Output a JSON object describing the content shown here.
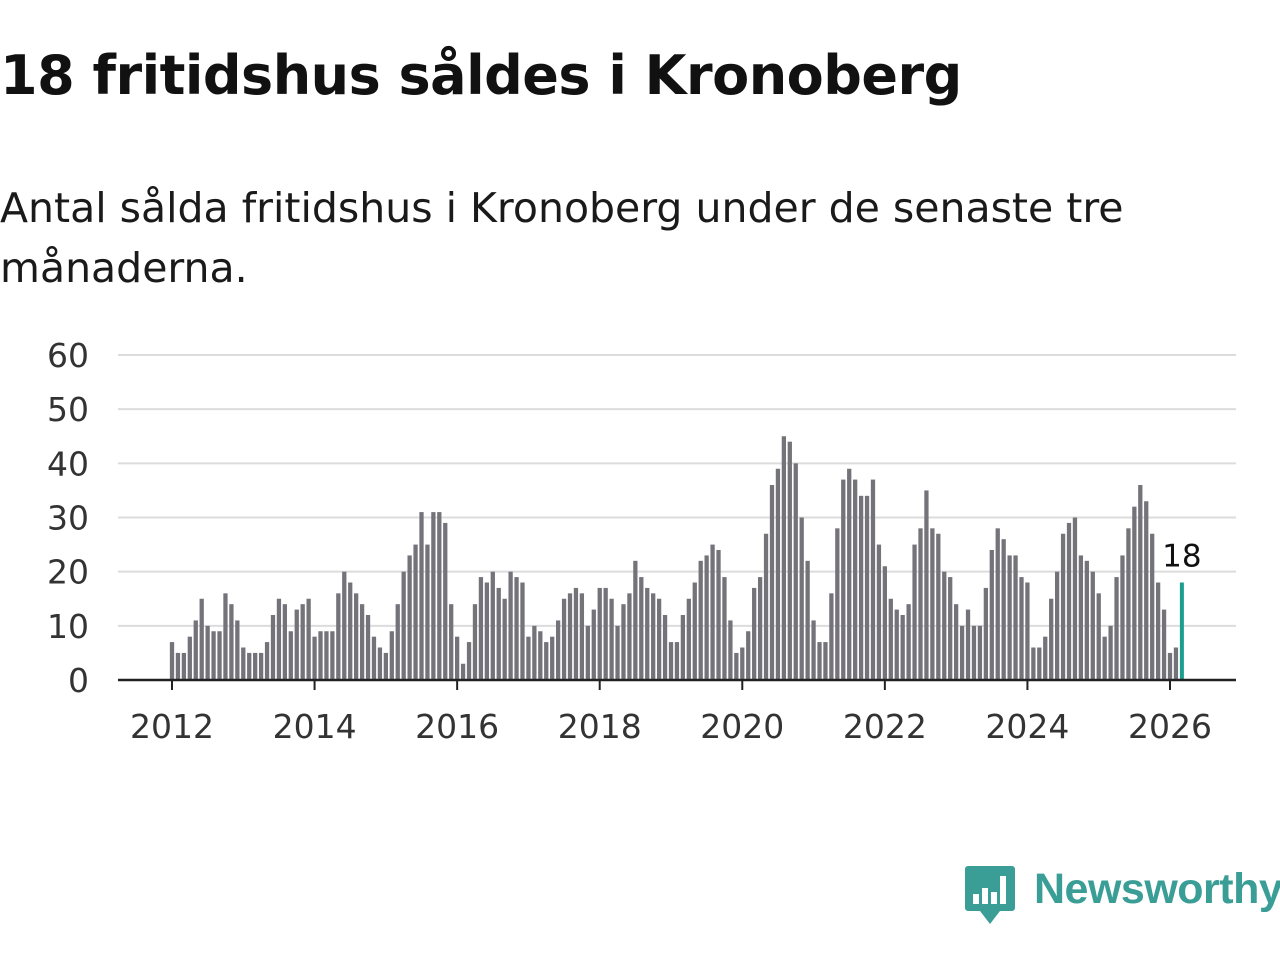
{
  "title": "18 fritidshus såldes i Kronoberg",
  "subtitle": "Antal sålda fritidshus i Kronoberg under de senaste tre månaderna.",
  "brand": {
    "name": "Newsworthy",
    "color": "#3a9e96",
    "icon": "newsworthy-logo-icon"
  },
  "chart_data": {
    "type": "bar",
    "title": "18 fritidshus såldes i Kronoberg",
    "xlabel": "",
    "ylabel": "",
    "ylim": [
      0,
      60
    ],
    "yticks": [
      0,
      10,
      20,
      30,
      40,
      50,
      60
    ],
    "ytick_labels": [
      "0",
      "10",
      "20",
      "30",
      "40",
      "50",
      "60"
    ],
    "xticks": [
      2012,
      2014,
      2016,
      2018,
      2020,
      2022,
      2024,
      2026
    ],
    "xtick_labels": [
      "2012",
      "2014",
      "2016",
      "2018",
      "2020",
      "2022",
      "2024",
      "2026"
    ],
    "grid": true,
    "start": "2012-01",
    "frequency": "monthly",
    "bar_color": "#75737a",
    "highlight_color": "#1a9e8f",
    "highlight_index": 170,
    "annotation": {
      "index": 170,
      "text": "18"
    },
    "values": [
      7,
      5,
      5,
      8,
      11,
      15,
      10,
      9,
      9,
      16,
      14,
      11,
      6,
      5,
      5,
      5,
      7,
      12,
      15,
      14,
      9,
      13,
      14,
      15,
      8,
      9,
      9,
      9,
      16,
      20,
      18,
      16,
      14,
      12,
      8,
      6,
      5,
      9,
      14,
      20,
      23,
      25,
      31,
      25,
      31,
      31,
      29,
      14,
      8,
      3,
      7,
      14,
      19,
      18,
      20,
      17,
      15,
      20,
      19,
      18,
      8,
      10,
      9,
      7,
      8,
      11,
      15,
      16,
      17,
      16,
      10,
      13,
      17,
      17,
      15,
      10,
      14,
      16,
      22,
      19,
      17,
      16,
      15,
      12,
      7,
      7,
      12,
      15,
      18,
      22,
      23,
      25,
      24,
      19,
      11,
      5,
      6,
      9,
      17,
      19,
      27,
      36,
      39,
      45,
      44,
      40,
      30,
      22,
      11,
      7,
      7,
      16,
      28,
      37,
      39,
      37,
      34,
      34,
      37,
      25,
      21,
      15,
      13,
      12,
      14,
      25,
      28,
      35,
      28,
      27,
      20,
      19,
      14,
      10,
      13,
      10,
      10,
      17,
      24,
      28,
      26,
      23,
      23,
      19,
      18,
      6,
      6,
      8,
      15,
      20,
      27,
      29,
      30,
      23,
      22,
      20,
      16,
      8,
      10,
      19,
      23,
      28,
      32,
      36,
      33,
      27,
      18,
      13,
      5,
      6,
      18
    ]
  }
}
